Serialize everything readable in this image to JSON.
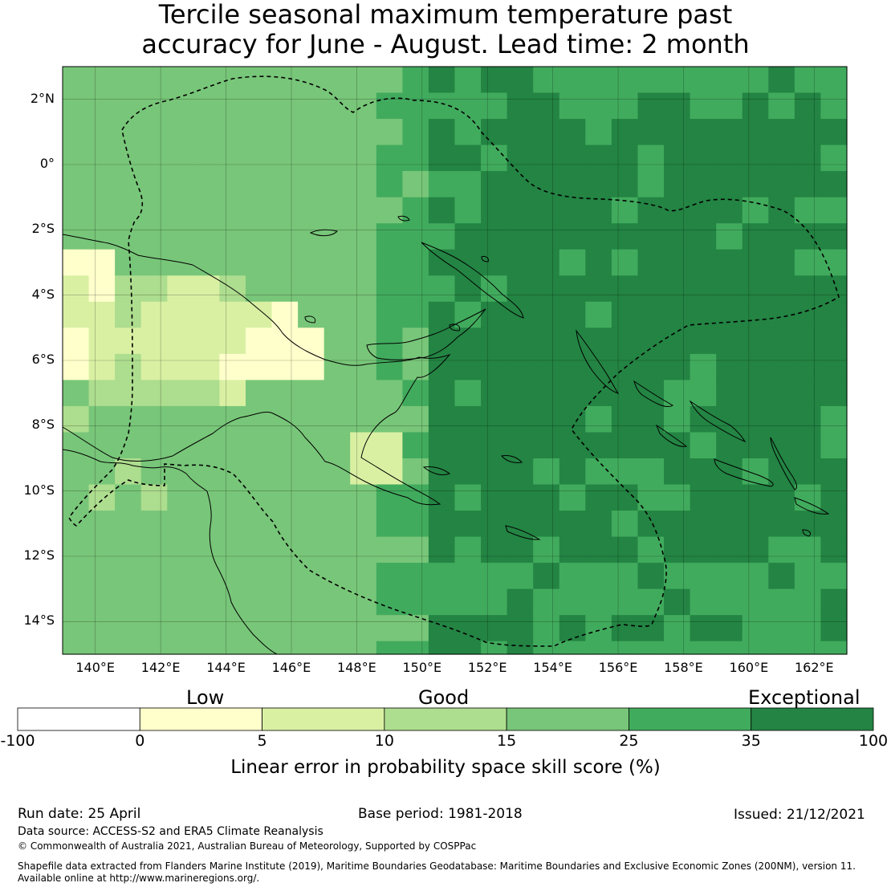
{
  "title": {
    "line1": "Tercile seasonal maximum temperature past",
    "line2": "accuracy for June - August. Lead time: 2 month"
  },
  "map": {
    "lat_labels": [
      "2°N",
      "0°",
      "2°S",
      "4°S",
      "6°S",
      "8°S",
      "10°S",
      "12°S",
      "14°S"
    ],
    "lon_labels": [
      "140°E",
      "142°E",
      "144°E",
      "146°E",
      "148°E",
      "150°E",
      "152°E",
      "154°E",
      "156°E",
      "158°E",
      "160°E",
      "162°E"
    ],
    "lon_range": [
      139,
      163
    ],
    "lat_range": [
      -15,
      3
    ],
    "grid_resolution_deg": 0.8,
    "category_colors": [
      "#ffffff",
      "#ffffcc",
      "#d9f0a3",
      "#addd8e",
      "#78c679",
      "#41ab5d",
      "#238443"
    ]
  },
  "colorbar": {
    "qualitative": [
      "Low",
      "Good",
      "Exceptional"
    ],
    "ticks": [
      "-100",
      "0",
      "5",
      "10",
      "15",
      "25",
      "35",
      "100"
    ],
    "colors": [
      "#ffffff",
      "#ffffcc",
      "#d9f0a3",
      "#addd8e",
      "#78c679",
      "#41ab5d",
      "#238443"
    ],
    "label": "Linear error in probability space skill score (%)"
  },
  "footer": {
    "run_date": "Run date: 25 April",
    "base_period": "Base period: 1981-2018",
    "issued": "Issued: 21/12/2021",
    "data_source": "Data source: ACCESS-S2 and ERA5 Climate Reanalysis",
    "copyright": "© Commonwealth of Australia 2021, Australian Bureau of Meteorology, Supported by COSPPac",
    "shapefile_line1": "Shapefile data extracted from Flanders Marine Institute (2019), Maritime Boundaries Geodatabase: Maritime Boundaries and Exclusive Economic Zones (200NM), version 11.",
    "shapefile_line2": "Available online at http://www.marineregions.org/."
  }
}
